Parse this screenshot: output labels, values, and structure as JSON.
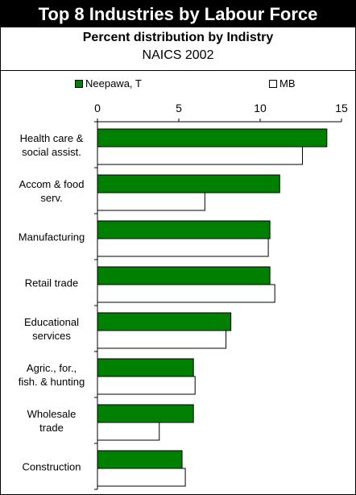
{
  "header": {
    "title": "Top 8 Industries by Labour Force",
    "subtitle": "Percent distribution by Indistry",
    "subtitle2": "NAICS 2002"
  },
  "colors": {
    "series1": "#008000",
    "series2": "#ffffff",
    "stroke": "#000000"
  },
  "chart_data": {
    "type": "bar",
    "orientation": "horizontal",
    "title": "Top 8 Industries by Labour Force",
    "subtitle": "Percent distribution by Indistry",
    "categories": [
      [
        "Health care &",
        "social assist."
      ],
      [
        "Accom & food",
        "serv."
      ],
      [
        "Manufacturing"
      ],
      [
        "Retail trade"
      ],
      [
        "Educational",
        "services"
      ],
      [
        "Agric., for.,",
        "fish. & hunting"
      ],
      [
        "Wholesale",
        "trade"
      ],
      [
        "Construction"
      ]
    ],
    "series": [
      {
        "name": "Neepawa, T",
        "color": "#008000",
        "values": [
          14.1,
          11.2,
          10.6,
          10.6,
          8.2,
          5.9,
          5.9,
          5.2
        ]
      },
      {
        "name": "MB",
        "color": "#ffffff",
        "values": [
          12.6,
          6.6,
          10.5,
          10.9,
          7.9,
          6.0,
          3.8,
          5.4
        ]
      }
    ],
    "xlim": [
      0,
      15
    ],
    "xticks": [
      0,
      5,
      10,
      15
    ],
    "legend_position": "top",
    "grid": false
  }
}
